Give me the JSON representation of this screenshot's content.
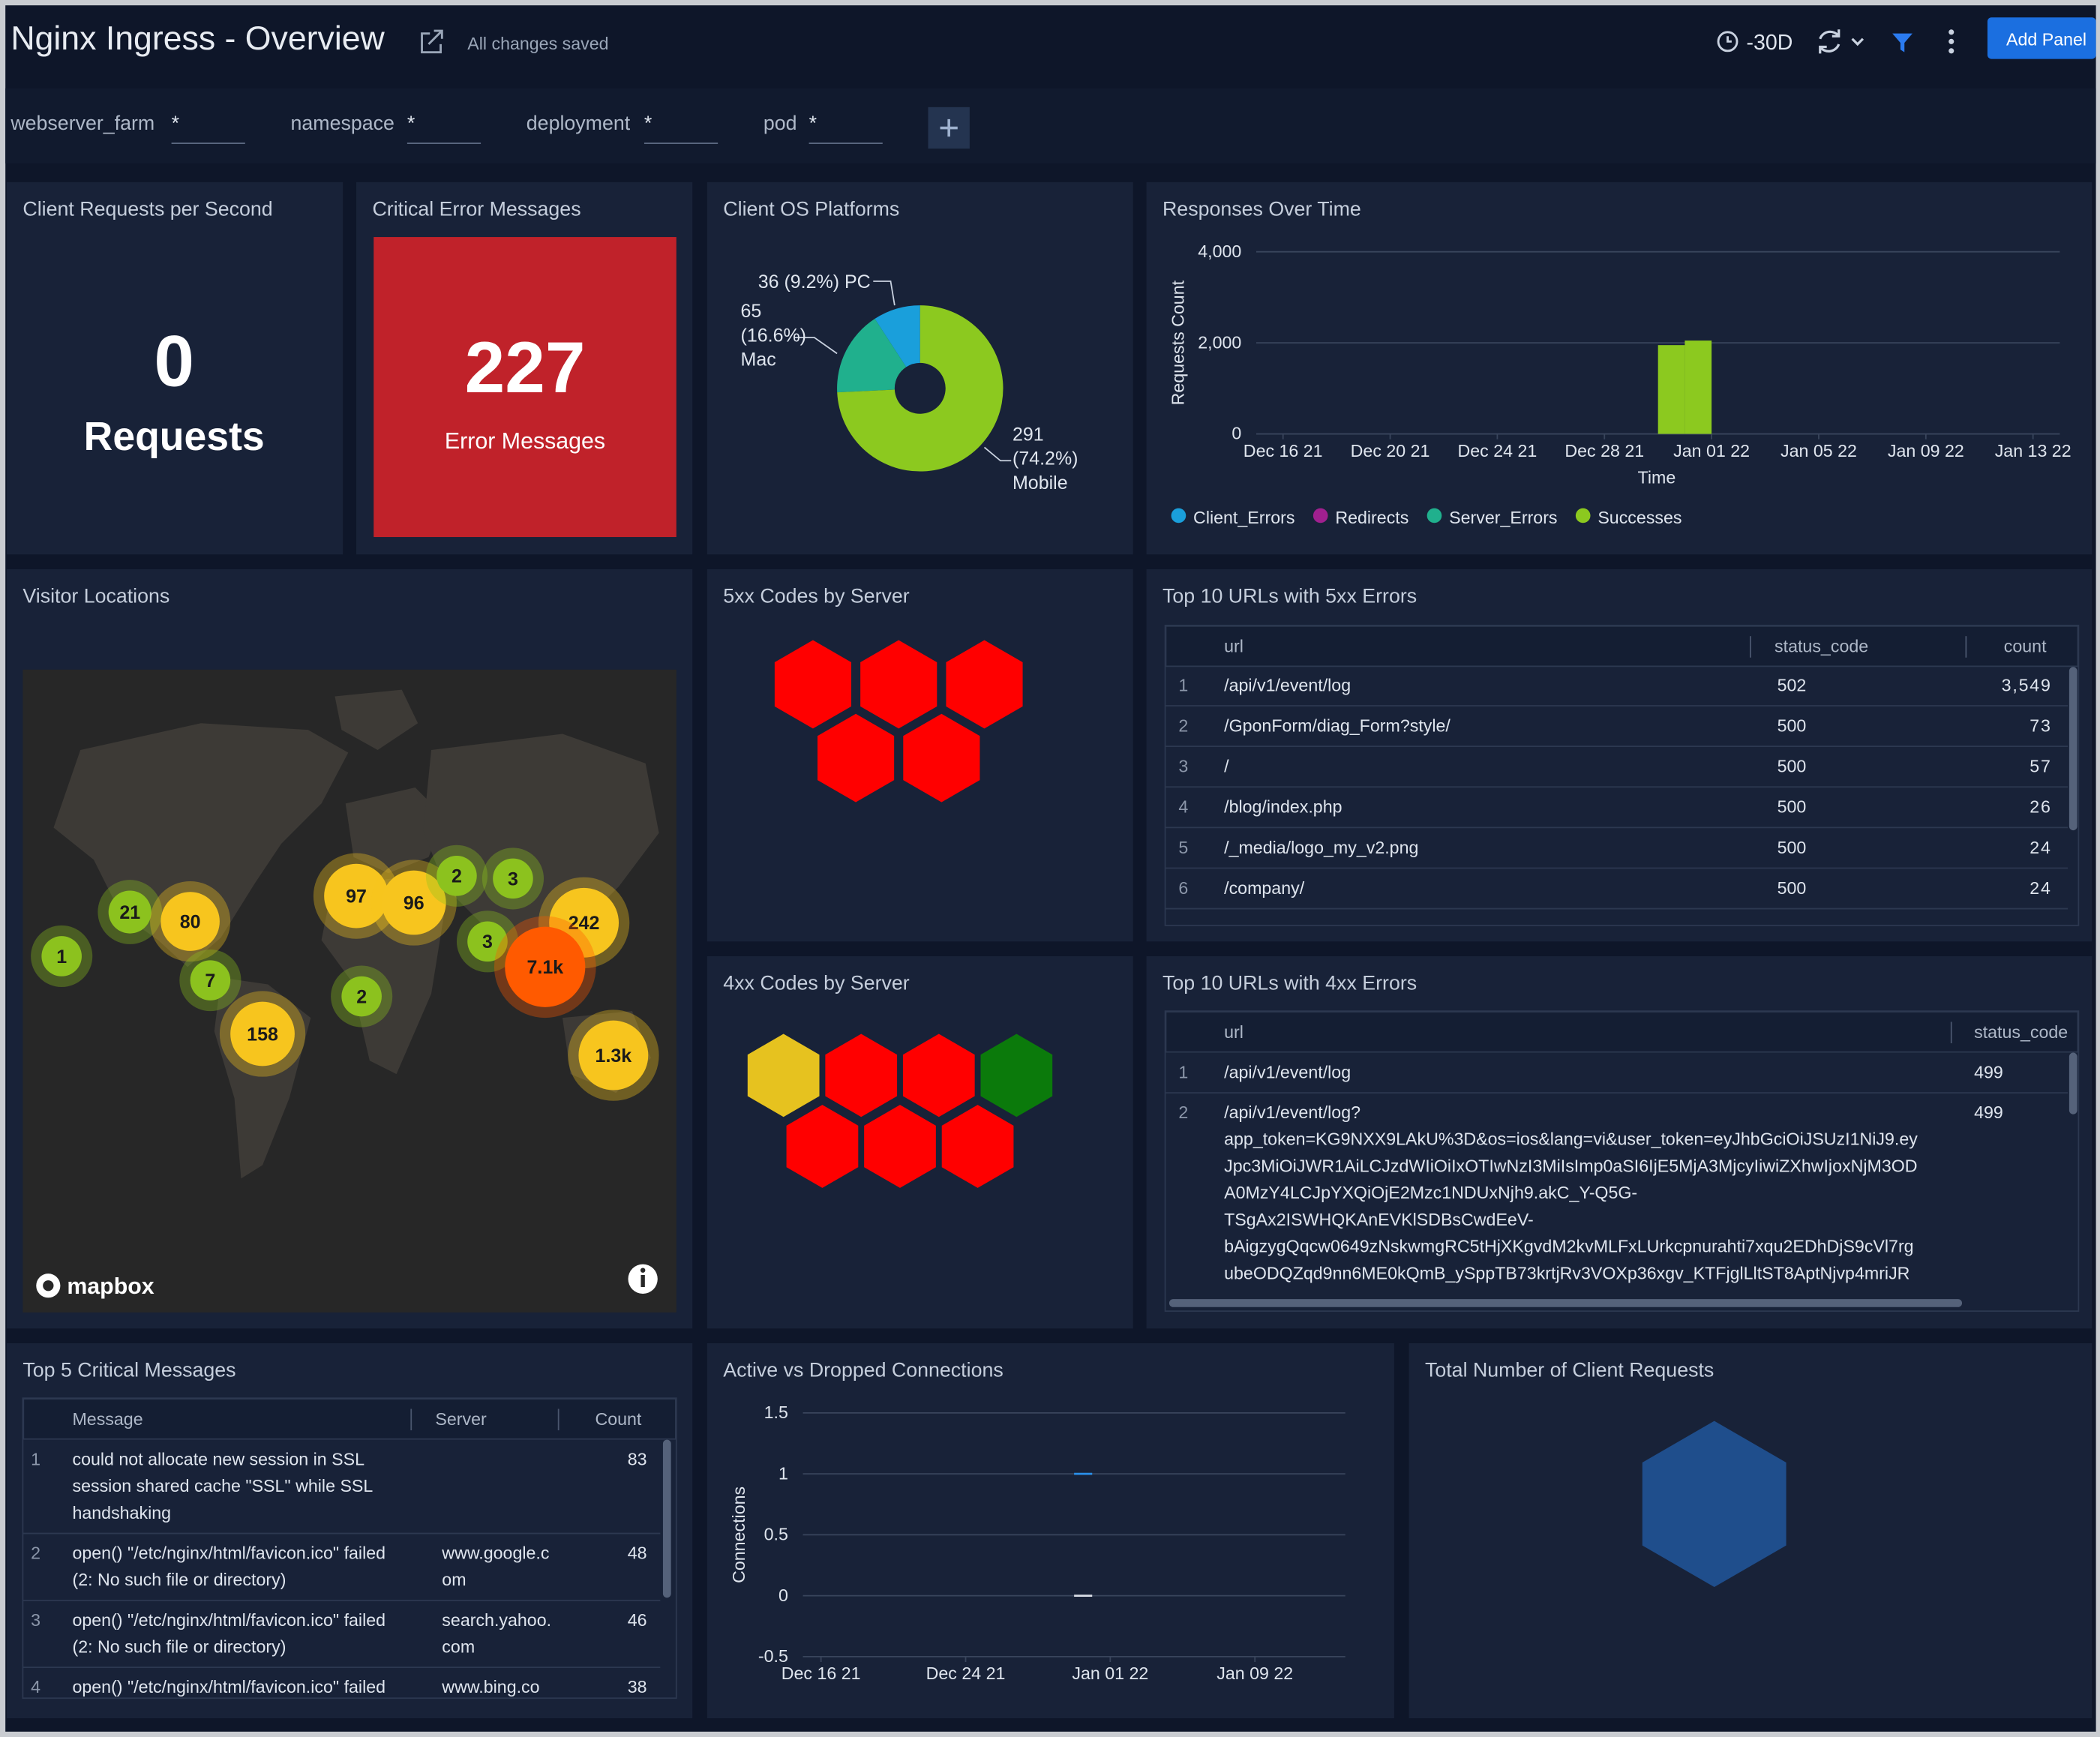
{
  "header": {
    "title": "Nginx Ingress - Overview",
    "status": "All changes saved",
    "time_range": "-30D",
    "add_panel": "Add Panel"
  },
  "filters": [
    {
      "name": "webserver_farm",
      "value": "*"
    },
    {
      "name": "namespace",
      "value": "*"
    },
    {
      "name": "deployment",
      "value": "*"
    },
    {
      "name": "pod",
      "value": "*"
    }
  ],
  "panels": {
    "client_requests": {
      "title": "Client Requests per Second",
      "value": 0,
      "unit": "Requests"
    },
    "critical_errors": {
      "title": "Critical Error Messages",
      "value": 227,
      "unit": "Error Messages",
      "color": "#c0222a"
    },
    "client_os": {
      "title": "Client OS Platforms",
      "chart_data": {
        "type": "donut",
        "values": [
          36,
          65,
          291
        ],
        "value_labels": [
          "36 (9.2%) PC",
          "65 (16.6%) Mac",
          "291 (74.2%) Mobile"
        ],
        "colors": [
          "#1a9fdb",
          "#20b08d",
          "#8cc91f"
        ]
      }
    },
    "responses": {
      "title": "Responses Over Time",
      "chart_data": {
        "type": "stacked_column",
        "x_label": "Time",
        "y_label": "Requests Count",
        "x": [
          "2021-12-30",
          "2021-12-31"
        ],
        "series": [
          {
            "name": "Client_Errors",
            "color": "#1a9fdb",
            "values": [
              0,
              0
            ]
          },
          {
            "name": "Redirects",
            "color": "#a0208f",
            "values": [
              0,
              0
            ]
          },
          {
            "name": "Server_Errors",
            "color": "#20b08d",
            "values": [
              0,
              0
            ]
          },
          {
            "name": "Successes",
            "color": "#8cc91f",
            "values": [
              1950,
              2050
            ]
          }
        ],
        "xlim": [
          "2021-12-15",
          "2022-01-14"
        ],
        "xticks": [
          {
            "value": "2021-12-16",
            "label": "Dec 16 21"
          },
          {
            "value": "2021-12-20",
            "label": "Dec 20 21"
          },
          {
            "value": "2021-12-24",
            "label": "Dec 24 21"
          },
          {
            "value": "2021-12-28",
            "label": "Dec 28 21"
          },
          {
            "value": "2022-01-01",
            "label": "Jan 01 22"
          },
          {
            "value": "2022-01-05",
            "label": "Jan 05 22"
          },
          {
            "value": "2022-01-09",
            "label": "Jan 09 22"
          },
          {
            "value": "2022-01-13",
            "label": "Jan 13 22"
          }
        ],
        "ylim": [
          0,
          4000
        ],
        "yticks": [
          0,
          {
            "value": 2000,
            "label": "2,000"
          },
          {
            "value": 4000,
            "label": "4,000"
          }
        ],
        "grid": true
      }
    },
    "visitor_locations": {
      "title": "Visitor Locations",
      "attribution": "mapbox",
      "clusters": [
        {
          "count": 1,
          "color": "#8cc21e"
        },
        {
          "count": 21,
          "color": "#8cc21e"
        },
        {
          "count": 80,
          "color": "#f7c51e"
        },
        {
          "count": 7,
          "color": "#8cc21e"
        },
        {
          "count": 158,
          "color": "#f7c51e"
        },
        {
          "count": 97,
          "color": "#f7c51e"
        },
        {
          "count": 96,
          "color": "#f7c51e"
        },
        {
          "count": 2,
          "color": "#8cc21e"
        },
        {
          "count": 3,
          "color": "#8cc21e"
        },
        {
          "count": 3,
          "color": "#8cc21e"
        },
        {
          "count": 2,
          "color": "#8cc21e"
        },
        {
          "count": 242,
          "color": "#f7c51e"
        },
        {
          "count": 7100,
          "label": "7.1k",
          "color": "#ff5a00"
        },
        {
          "count": 1300,
          "label": "1.3k",
          "color": "#f7c51e"
        }
      ]
    },
    "codes_5xx": {
      "title": "5xx Codes by Server",
      "hex_colors": [
        "#ff0000",
        "#ff0000",
        "#ff0000",
        "#ff0000",
        "#ff0000"
      ]
    },
    "urls_5xx": {
      "title": "Top 10 URLs with 5xx Errors",
      "columns": [
        "url",
        "status_code",
        "count"
      ],
      "rows": [
        [
          1,
          "/api/v1/event/log",
          502,
          "3,549"
        ],
        [
          2,
          "/GponForm/diag_Form?style/",
          500,
          73
        ],
        [
          3,
          "/",
          500,
          57
        ],
        [
          4,
          "/blog/index.php",
          500,
          26
        ],
        [
          5,
          "/_media/logo_my_v2.png",
          500,
          24
        ],
        [
          6,
          "/company/",
          500,
          24
        ]
      ]
    },
    "codes_4xx": {
      "title": "4xx Codes by Server",
      "hex_colors": [
        "#e6c21f",
        "#ff0000",
        "#ff0000",
        "#0b7a0b",
        "#ff0000",
        "#ff0000",
        "#ff0000"
      ]
    },
    "urls_4xx": {
      "title": "Top 10 URLs with 4xx Errors",
      "columns": [
        "url",
        "status_code"
      ],
      "rows": [
        [
          1,
          [
            "/api/v1/event/log"
          ],
          499
        ],
        [
          2,
          [
            "/api/v1/event/log?",
            "app_token=KG9NXX9LAkU%3D&os=ios&lang=vi&user_token=eyJhbGciOiJSUzI1NiJ9.ey",
            "Jpc3MiOiJWR1AiLCJzdWIiOiIxOTIwNzI3MiIsImp0aSI6IjE5MjA3MjcyIiwiZXhwIjoxNjM3OD",
            "A0MzY4LCJpYXQiOjE2Mzc1NDUxNjh9.akC_Y-Q5G-",
            "TSgAx2ISWHQKAnEVKlSDBsCwdEeV-",
            "bAigzygQqcw0649zNskwmgRC5tHjXKgvdM2kvMLFxLUrkcpnurahti7xqu2EDhDjS9cVl7rg",
            "ubeODQZqd9nn6ME0kQmB_ySppTB73krtjRv3VOXp36xgv_KTFjglLltST8AptNjvp4mriJR"
          ],
          499
        ]
      ]
    },
    "critical_messages": {
      "title": "Top 5 Critical Messages",
      "columns": [
        "Message",
        "Server",
        "Count"
      ],
      "rows": [
        {
          "n": 1,
          "message": [
            "could not allocate new session in SSL",
            "session shared cache \"SSL\" while SSL",
            "handshaking"
          ],
          "count": 83
        },
        {
          "n": 2,
          "message": [
            "open() \"/etc/nginx/html/favicon.ico\" failed",
            "(2: No such file or directory)"
          ],
          "server": [
            "www.google.c",
            "om"
          ],
          "count": 48
        },
        {
          "n": 3,
          "message": [
            "open() \"/etc/nginx/html/favicon.ico\" failed",
            "(2: No such file or directory)"
          ],
          "server": [
            "search.yahoo.",
            "com"
          ],
          "count": 46
        },
        {
          "n": 4,
          "message": [
            "open() \"/etc/nginx/html/favicon.ico\" failed"
          ],
          "server": [
            "www.bing.co"
          ],
          "count": 38
        }
      ]
    },
    "connections": {
      "title": "Active vs Dropped Connections",
      "chart_data": {
        "type": "line",
        "y_label": "Connections",
        "x": [
          "2021-12-30",
          "2021-12-31"
        ],
        "series": [
          {
            "color": "#2a8fe8",
            "values": [
              1,
              1
            ]
          },
          {
            "color": "#d8dde6",
            "values": [
              0,
              0
            ]
          }
        ],
        "xlim": [
          "2021-12-15",
          "2022-01-14"
        ],
        "xticks": [
          {
            "value": "2021-12-16",
            "label": "Dec 16 21"
          },
          {
            "value": "2021-12-24",
            "label": "Dec 24 21"
          },
          {
            "value": "2022-01-01",
            "label": "Jan 01 22"
          },
          {
            "value": "2022-01-09",
            "label": "Jan 09 22"
          }
        ],
        "ylim": [
          -0.5,
          1.5
        ],
        "yticks": [
          -0.5,
          0,
          0.5,
          1,
          1.5
        ],
        "grid": true
      }
    },
    "total_requests": {
      "title": "Total Number of Client Requests",
      "hex_colors": [
        "#1f4e8c"
      ]
    }
  }
}
